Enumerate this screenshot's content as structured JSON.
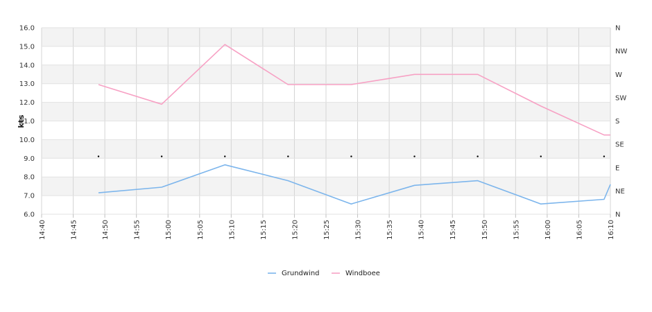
{
  "chart_data": {
    "type": "line",
    "ylabel": "kts",
    "ylim": [
      6,
      16
    ],
    "y_ticks": [
      "6.0",
      "7.0",
      "8.0",
      "9.0",
      "10.0",
      "11.0",
      "12.0",
      "13.0",
      "14.0",
      "15.0",
      "16.0"
    ],
    "x_ticks": [
      "14:40",
      "14:45",
      "14:50",
      "14:55",
      "15:00",
      "15:05",
      "15:10",
      "15:15",
      "15:20",
      "15:25",
      "15:30",
      "15:35",
      "15:40",
      "15:45",
      "15:50",
      "15:55",
      "16:00",
      "16:05",
      "16:10"
    ],
    "right_axis_labels": [
      "N",
      "NE",
      "E",
      "SE",
      "S",
      "SW",
      "W",
      "NW",
      "N"
    ],
    "grid": true,
    "legend_position": "bottom",
    "series": [
      {
        "name": "Grundwind",
        "color": "#7cb5ec",
        "points": [
          [
            "14:49",
            7.15
          ],
          [
            "14:59",
            7.45
          ],
          [
            "15:09",
            8.65
          ],
          [
            "15:19",
            7.8
          ],
          [
            "15:29",
            6.55
          ],
          [
            "15:39",
            7.55
          ],
          [
            "15:49",
            7.8
          ],
          [
            "15:59",
            6.55
          ],
          [
            "16:09",
            6.8
          ],
          [
            "16:10",
            7.6
          ]
        ]
      },
      {
        "name": "Windboee",
        "color": "#f7a1c4",
        "points": [
          [
            "14:49",
            12.95
          ],
          [
            "14:59",
            11.9
          ],
          [
            "15:09",
            15.1
          ],
          [
            "15:19",
            12.95
          ],
          [
            "15:29",
            12.95
          ],
          [
            "15:39",
            13.5
          ],
          [
            "15:49",
            13.5
          ],
          [
            "15:59",
            11.8
          ],
          [
            "16:09",
            10.25
          ],
          [
            "16:10",
            10.25
          ]
        ]
      }
    ],
    "direction_markers": [
      "14:49",
      "14:59",
      "15:09",
      "15:19",
      "15:29",
      "15:39",
      "15:49",
      "15:59",
      "16:09"
    ],
    "direction_marker_value": 9.1
  }
}
